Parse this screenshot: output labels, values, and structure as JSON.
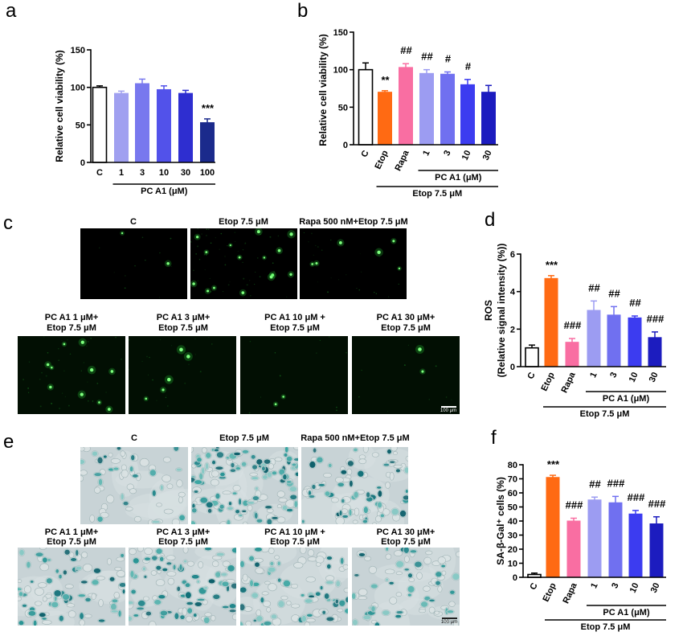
{
  "chart_data": [
    {
      "panel": "a",
      "type": "bar",
      "categories": [
        "C",
        "1",
        "3",
        "10",
        "30",
        "100"
      ],
      "values": [
        100,
        92,
        105,
        97,
        92,
        53
      ],
      "errors": [
        2,
        3,
        6,
        5,
        4,
        5
      ],
      "significance": [
        "",
        "",
        "",
        "",
        "",
        "***"
      ],
      "colors": [
        "#ffffff",
        "#a0a0f0",
        "#7878ee",
        "#5252ea",
        "#2e2ed0",
        "#1b2a8c"
      ],
      "ylabel": [
        "Relative cell viability (%)"
      ],
      "ylim": [
        0,
        150
      ],
      "yticks": [
        0,
        50,
        100,
        150
      ],
      "groups": [
        {
          "label": "PC A1 (μM)",
          "from": 1,
          "to": 5
        }
      ]
    },
    {
      "panel": "b",
      "type": "bar",
      "categories": [
        "C",
        "Etop",
        "Rapa",
        "1",
        "3",
        "10",
        "30"
      ],
      "values": [
        100,
        70,
        103,
        95,
        94,
        80,
        70
      ],
      "errors": [
        9,
        2,
        5,
        5,
        3,
        7,
        9
      ],
      "significance": [
        "",
        "**",
        "##",
        "##",
        "#",
        "#",
        ""
      ],
      "colors": [
        "#ffffff",
        "#ff6a13",
        "#f96ea2",
        "#9c9cf2",
        "#7070f0",
        "#3c3cf0",
        "#1c1cbf"
      ],
      "ylabel": [
        "Relative cell viability (%)"
      ],
      "ylim": [
        0,
        150
      ],
      "yticks": [
        0,
        50,
        100,
        150
      ],
      "groups": [
        {
          "label": "PC A1 (μM)",
          "from": 3,
          "to": 6
        },
        {
          "label": "Etop 7.5 μM",
          "from": 1,
          "to": 6
        }
      ]
    },
    {
      "panel": "d",
      "type": "bar",
      "categories": [
        "C",
        "Etop",
        "Rapa",
        "1",
        "3",
        "10",
        "30"
      ],
      "values": [
        1.0,
        4.7,
        1.3,
        3.0,
        2.75,
        2.6,
        1.55
      ],
      "errors": [
        0.15,
        0.15,
        0.2,
        0.5,
        0.45,
        0.1,
        0.3
      ],
      "significance": [
        "",
        "***",
        "###",
        "##",
        "##",
        "##",
        "###"
      ],
      "colors": [
        "#ffffff",
        "#ff6a13",
        "#f96ea2",
        "#9c9cf2",
        "#7070f0",
        "#3c3cf0",
        "#1c1cbf"
      ],
      "ylabel": [
        "ROS",
        "(Relative signal intensity (%))"
      ],
      "ylim": [
        0,
        6
      ],
      "yticks": [
        0,
        2,
        4,
        6
      ],
      "groups": [
        {
          "label": "PC A1 (μM)",
          "from": 3,
          "to": 6
        },
        {
          "label": "Etop 7.5 μM",
          "from": 1,
          "to": 6
        }
      ]
    },
    {
      "panel": "f",
      "type": "bar",
      "categories": [
        "C",
        "Etop",
        "Rapa",
        "1",
        "3",
        "10",
        "30"
      ],
      "values": [
        2,
        71,
        40,
        55,
        53,
        45,
        38
      ],
      "errors": [
        1,
        1.5,
        2,
        2,
        4.5,
        2.5,
        5
      ],
      "significance": [
        "",
        "***",
        "###",
        "##",
        "###",
        "###",
        "###"
      ],
      "colors": [
        "#ffffff",
        "#ff6a13",
        "#f96ea2",
        "#9c9cf2",
        "#7070f0",
        "#3c3cf0",
        "#1c1cbf"
      ],
      "ylabel": [
        "SA-β-Gal⁺ cells (%)"
      ],
      "ylim": [
        0,
        80
      ],
      "yticks": [
        0,
        10,
        20,
        30,
        40,
        50,
        60,
        70,
        80
      ],
      "groups": [
        {
          "label": "PC A1 (μM)",
          "from": 3,
          "to": 6
        },
        {
          "label": "Etop 7.5 μM",
          "from": 1,
          "to": 6
        }
      ]
    }
  ],
  "micrographs": {
    "c": {
      "letter": "c",
      "top": [
        {
          "lines": [
            "C"
          ]
        },
        {
          "lines": [
            "Etop 7.5 μM"
          ]
        },
        {
          "lines": [
            "Rapa 500 nM+Etop 7.5 μM"
          ]
        }
      ],
      "bottom": [
        {
          "lines": [
            "PC A1 1 μM+",
            "Etop 7.5 μM"
          ]
        },
        {
          "lines": [
            "PC A1 3 μM+",
            "Etop 7.5 μM"
          ]
        },
        {
          "lines": [
            "PC A1 10 μM +",
            "Etop 7.5 μM"
          ]
        },
        {
          "lines": [
            "PC A1 30 μM+",
            "Etop 7.5 μM"
          ]
        }
      ],
      "scale_bar": "100 μm",
      "stain_color": "#33ff44"
    },
    "e": {
      "letter": "e",
      "top": [
        {
          "lines": [
            "C"
          ]
        },
        {
          "lines": [
            "Etop 7.5 μM"
          ]
        },
        {
          "lines": [
            "Rapa 500 nM+Etop 7.5 μM"
          ]
        }
      ],
      "bottom": [
        {
          "lines": [
            "PC A1 1 μM+",
            "Etop 7.5 μM"
          ]
        },
        {
          "lines": [
            "PC A1 3 μM+",
            "Etop 7.5 μM"
          ]
        },
        {
          "lines": [
            "PC A1 10 μM +",
            "Etop 7.5 μM"
          ]
        },
        {
          "lines": [
            "PC A1 30 μM+",
            "Etop 7.5 μM"
          ]
        }
      ],
      "scale_bar": "100 μm",
      "stain_color": "#2f9c9a"
    }
  }
}
